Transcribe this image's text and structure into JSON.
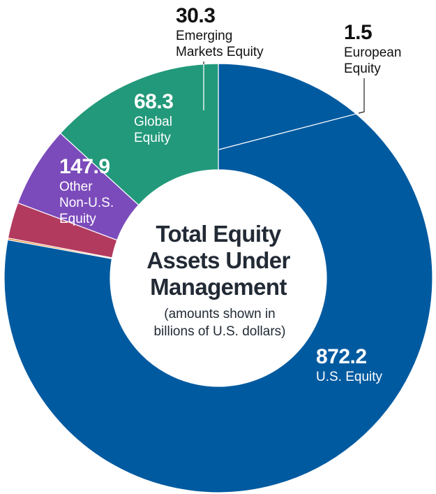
{
  "chart_data": {
    "type": "pie",
    "title": "",
    "center_title": [
      "Total Equity",
      "Assets Under",
      "Management"
    ],
    "center_subtitle": [
      "(amounts shown in",
      "billions of U.S. dollars)"
    ],
    "categories": [
      "U.S. Equity",
      "European Equity",
      "Emerging Markets Equity",
      "Global Equity",
      "Other Non-U.S. Equity"
    ],
    "values": [
      872.2,
      1.5,
      30.3,
      68.3,
      147.9
    ],
    "value_labels": [
      "872.2",
      "1.5",
      "30.3",
      "68.3",
      "147.9"
    ],
    "label_lines": [
      [
        "U.S. Equity"
      ],
      [
        "European",
        "Equity"
      ],
      [
        "Emerging",
        "Markets Equity"
      ],
      [
        "Global",
        "Equity"
      ],
      [
        "Other",
        "Non-U.S.",
        "Equity"
      ]
    ],
    "colors": [
      "#005aa0",
      "#e07a1f",
      "#b23a5e",
      "#7b4bbb",
      "#22997a"
    ],
    "legend": "none"
  }
}
